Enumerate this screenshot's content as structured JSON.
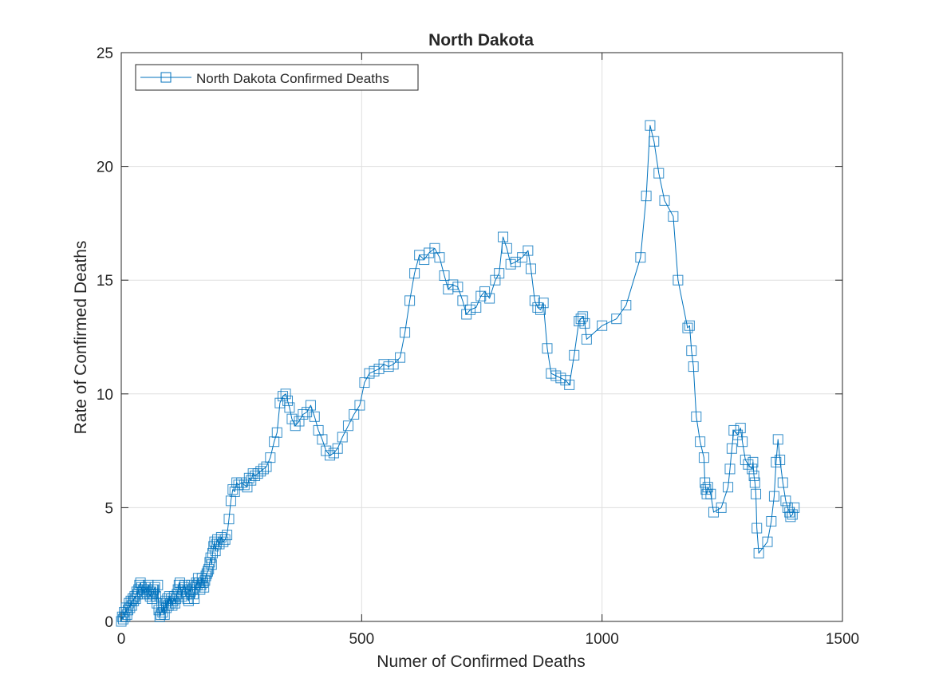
{
  "chart_data": {
    "type": "line",
    "title": "North Dakota",
    "xlabel": "Numer of Confirmed Deaths",
    "ylabel": "Rate of Confirmed Deaths",
    "xlim": [
      0,
      1500
    ],
    "ylim": [
      0,
      25
    ],
    "xticks": [
      0,
      500,
      1000,
      1500
    ],
    "yticks": [
      0,
      5,
      10,
      15,
      20,
      25
    ],
    "grid": true,
    "legend_position": "top-left",
    "colors": {
      "series": "#0072BD",
      "grid": "#dfdfdf",
      "axis": "#262626"
    },
    "series": [
      {
        "name": "North Dakota Confirmed Deaths",
        "marker": "square",
        "points": [
          [
            0,
            0
          ],
          [
            2,
            0.2
          ],
          [
            4,
            0.1
          ],
          [
            6,
            0.4
          ],
          [
            8,
            0.2
          ],
          [
            10,
            0.6
          ],
          [
            12,
            0.3
          ],
          [
            14,
            0.5
          ],
          [
            16,
            0.8
          ],
          [
            18,
            0.6
          ],
          [
            20,
            0.9
          ],
          [
            22,
            0.7
          ],
          [
            24,
            1.0
          ],
          [
            26,
            0.9
          ],
          [
            28,
            1.1
          ],
          [
            30,
            1.0
          ],
          [
            32,
            1.3
          ],
          [
            34,
            1.2
          ],
          [
            36,
            1.4
          ],
          [
            38,
            1.6
          ],
          [
            40,
            1.7
          ],
          [
            42,
            1.5
          ],
          [
            44,
            1.3
          ],
          [
            46,
            1.4
          ],
          [
            48,
            1.2
          ],
          [
            50,
            1.5
          ],
          [
            52,
            1.3
          ],
          [
            54,
            1.4
          ],
          [
            56,
            1.6
          ],
          [
            58,
            1.2
          ],
          [
            60,
            1.1
          ],
          [
            62,
            1.3
          ],
          [
            64,
            1.0
          ],
          [
            66,
            1.2
          ],
          [
            68,
            1.4
          ],
          [
            70,
            1.5
          ],
          [
            72,
            1.1
          ],
          [
            74,
            0.8
          ],
          [
            76,
            1.6
          ],
          [
            78,
            0.5
          ],
          [
            80,
            0.2
          ],
          [
            82,
            0.3
          ],
          [
            84,
            0.6
          ],
          [
            86,
            0.4
          ],
          [
            88,
            0.8
          ],
          [
            90,
            0.3
          ],
          [
            92,
            0.9
          ],
          [
            94,
            0.6
          ],
          [
            96,
            1.0
          ],
          [
            98,
            0.7
          ],
          [
            100,
            1.1
          ],
          [
            102,
            0.8
          ],
          [
            104,
            1.0
          ],
          [
            106,
            0.7
          ],
          [
            108,
            0.9
          ],
          [
            110,
            1.1
          ],
          [
            112,
            0.8
          ],
          [
            114,
            1.0
          ],
          [
            116,
            1.2
          ],
          [
            118,
            1.4
          ],
          [
            120,
            1.6
          ],
          [
            122,
            1.7
          ],
          [
            124,
            1.3
          ],
          [
            126,
            1.1
          ],
          [
            128,
            1.4
          ],
          [
            130,
            1.5
          ],
          [
            132,
            1.6
          ],
          [
            134,
            1.3
          ],
          [
            136,
            1.2
          ],
          [
            138,
            1.0
          ],
          [
            140,
            0.9
          ],
          [
            142,
            1.4
          ],
          [
            144,
            1.3
          ],
          [
            146,
            1.6
          ],
          [
            148,
            1.4
          ],
          [
            150,
            1.2
          ],
          [
            152,
            1.0
          ],
          [
            154,
            1.5
          ],
          [
            156,
            1.7
          ],
          [
            158,
            1.6
          ],
          [
            160,
            1.9
          ],
          [
            162,
            1.7
          ],
          [
            164,
            1.4
          ],
          [
            166,
            1.6
          ],
          [
            168,
            1.9
          ],
          [
            170,
            1.7
          ],
          [
            172,
            1.5
          ],
          [
            174,
            1.8
          ],
          [
            176,
            2.0
          ],
          [
            178,
            2.1
          ],
          [
            180,
            2.2
          ],
          [
            182,
            2.3
          ],
          [
            184,
            2.6
          ],
          [
            186,
            2.8
          ],
          [
            188,
            2.5
          ],
          [
            190,
            3.0
          ],
          [
            192,
            3.3
          ],
          [
            194,
            3.5
          ],
          [
            196,
            3.1
          ],
          [
            198,
            3.4
          ],
          [
            200,
            3.6
          ],
          [
            204,
            3.4
          ],
          [
            208,
            3.7
          ],
          [
            212,
            3.5
          ],
          [
            216,
            3.6
          ],
          [
            220,
            3.8
          ],
          [
            224,
            4.5
          ],
          [
            228,
            5.3
          ],
          [
            232,
            5.8
          ],
          [
            236,
            5.7
          ],
          [
            240,
            6.1
          ],
          [
            244,
            6.0
          ],
          [
            250,
            6.1
          ],
          [
            256,
            6.0
          ],
          [
            262,
            5.9
          ],
          [
            266,
            6.3
          ],
          [
            270,
            6.2
          ],
          [
            274,
            6.5
          ],
          [
            278,
            6.4
          ],
          [
            284,
            6.5
          ],
          [
            290,
            6.6
          ],
          [
            296,
            6.7
          ],
          [
            302,
            6.8
          ],
          [
            310,
            7.2
          ],
          [
            318,
            7.9
          ],
          [
            324,
            8.3
          ],
          [
            330,
            9.6
          ],
          [
            336,
            9.9
          ],
          [
            342,
            10.0
          ],
          [
            346,
            9.7
          ],
          [
            350,
            9.4
          ],
          [
            355,
            8.9
          ],
          [
            362,
            8.6
          ],
          [
            370,
            8.8
          ],
          [
            378,
            9.1
          ],
          [
            386,
            9.2
          ],
          [
            394,
            9.5
          ],
          [
            402,
            9.0
          ],
          [
            410,
            8.4
          ],
          [
            418,
            8.0
          ],
          [
            426,
            7.5
          ],
          [
            434,
            7.3
          ],
          [
            442,
            7.4
          ],
          [
            450,
            7.6
          ],
          [
            460,
            8.1
          ],
          [
            472,
            8.6
          ],
          [
            484,
            9.1
          ],
          [
            496,
            9.5
          ],
          [
            506,
            10.5
          ],
          [
            516,
            10.9
          ],
          [
            526,
            11.0
          ],
          [
            536,
            11.1
          ],
          [
            546,
            11.3
          ],
          [
            556,
            11.2
          ],
          [
            566,
            11.3
          ],
          [
            580,
            11.6
          ],
          [
            590,
            12.7
          ],
          [
            600,
            14.1
          ],
          [
            610,
            15.3
          ],
          [
            620,
            16.1
          ],
          [
            630,
            15.9
          ],
          [
            640,
            16.2
          ],
          [
            652,
            16.4
          ],
          [
            662,
            16.0
          ],
          [
            672,
            15.2
          ],
          [
            680,
            14.6
          ],
          [
            690,
            14.8
          ],
          [
            700,
            14.7
          ],
          [
            710,
            14.1
          ],
          [
            718,
            13.5
          ],
          [
            726,
            13.7
          ],
          [
            738,
            13.8
          ],
          [
            748,
            14.3
          ],
          [
            756,
            14.5
          ],
          [
            766,
            14.2
          ],
          [
            778,
            15.0
          ],
          [
            786,
            15.3
          ],
          [
            794,
            16.9
          ],
          [
            802,
            16.4
          ],
          [
            810,
            15.7
          ],
          [
            820,
            15.8
          ],
          [
            834,
            16.0
          ],
          [
            846,
            16.3
          ],
          [
            852,
            15.5
          ],
          [
            860,
            14.1
          ],
          [
            866,
            13.8
          ],
          [
            872,
            13.7
          ],
          [
            878,
            14.0
          ],
          [
            886,
            12.0
          ],
          [
            894,
            10.9
          ],
          [
            904,
            10.8
          ],
          [
            914,
            10.7
          ],
          [
            924,
            10.6
          ],
          [
            932,
            10.4
          ],
          [
            942,
            11.7
          ],
          [
            952,
            13.2
          ],
          [
            956,
            13.3
          ],
          [
            960,
            13.4
          ],
          [
            964,
            13.1
          ],
          [
            968,
            12.4
          ],
          [
            1000,
            13.0
          ],
          [
            1030,
            13.3
          ],
          [
            1050,
            13.9
          ],
          [
            1080,
            16.0
          ],
          [
            1092,
            18.7
          ],
          [
            1100,
            21.8
          ],
          [
            1108,
            21.1
          ],
          [
            1118,
            19.7
          ],
          [
            1130,
            18.5
          ],
          [
            1148,
            17.8
          ],
          [
            1158,
            15.0
          ],
          [
            1178,
            12.9
          ],
          [
            1182,
            13.0
          ],
          [
            1186,
            11.9
          ],
          [
            1190,
            11.2
          ],
          [
            1196,
            9.0
          ],
          [
            1204,
            7.9
          ],
          [
            1212,
            7.2
          ],
          [
            1214,
            6.1
          ],
          [
            1216,
            5.8
          ],
          [
            1218,
            5.6
          ],
          [
            1220,
            5.9
          ],
          [
            1226,
            5.6
          ],
          [
            1232,
            4.8
          ],
          [
            1248,
            5.0
          ],
          [
            1262,
            5.9
          ],
          [
            1266,
            6.7
          ],
          [
            1270,
            7.6
          ],
          [
            1274,
            8.4
          ],
          [
            1282,
            8.2
          ],
          [
            1288,
            8.5
          ],
          [
            1292,
            7.9
          ],
          [
            1298,
            7.1
          ],
          [
            1304,
            6.9
          ],
          [
            1312,
            6.7
          ],
          [
            1314,
            7.0
          ],
          [
            1316,
            6.4
          ],
          [
            1318,
            6.1
          ],
          [
            1320,
            5.6
          ],
          [
            1322,
            4.1
          ],
          [
            1326,
            3.0
          ],
          [
            1344,
            3.5
          ],
          [
            1352,
            4.4
          ],
          [
            1358,
            5.5
          ],
          [
            1362,
            7.0
          ],
          [
            1366,
            8.0
          ],
          [
            1370,
            7.1
          ],
          [
            1376,
            6.1
          ],
          [
            1382,
            5.3
          ],
          [
            1386,
            5.0
          ],
          [
            1390,
            4.8
          ],
          [
            1392,
            4.6
          ],
          [
            1396,
            4.7
          ],
          [
            1400,
            5.0
          ]
        ]
      }
    ]
  }
}
